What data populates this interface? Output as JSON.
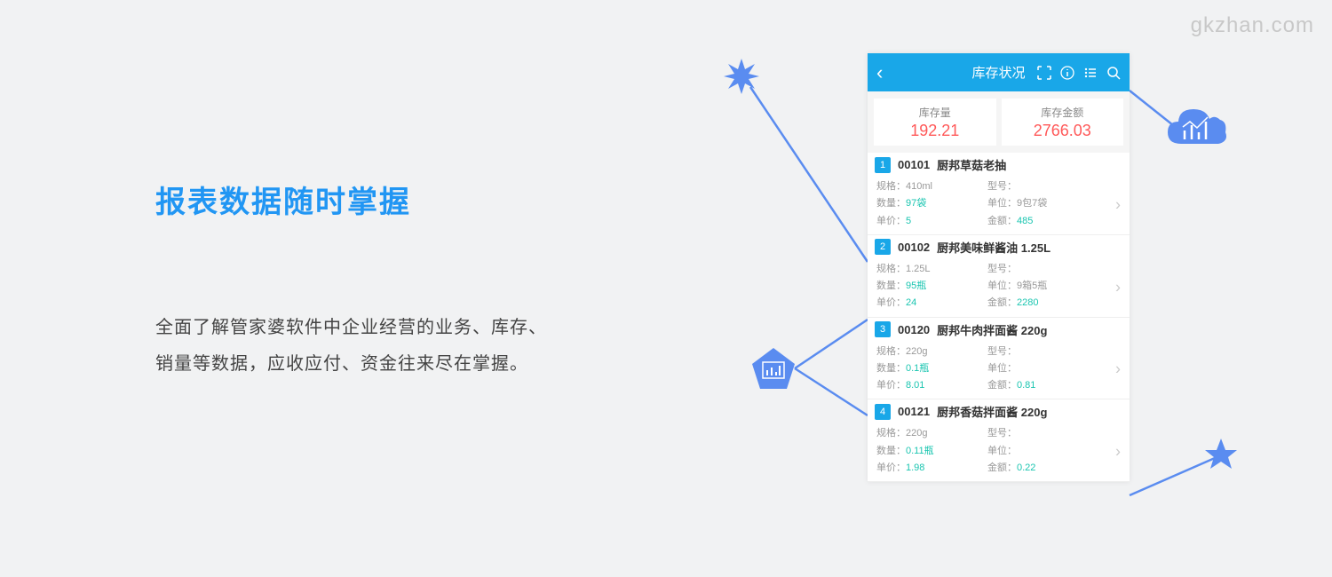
{
  "watermark": "gkzhan.com",
  "headline": "报表数据随时掌握",
  "body": "全面了解管家婆软件中企业经营的业务、库存、销量等数据，应收应付、资金往来尽在掌握。",
  "phone": {
    "title": "库存状况",
    "summary": {
      "qty_label": "库存量",
      "qty_value": "192.21",
      "amt_label": "库存金额",
      "amt_value": "2766.03"
    },
    "labels": {
      "spec": "规格：",
      "model": "型号：",
      "qty": "数量：",
      "unit": "单位：",
      "price": "单价：",
      "amount": "金额："
    },
    "items": [
      {
        "idx": "1",
        "code": "00101",
        "name": "厨邦草菇老抽",
        "spec": "410ml",
        "model": "",
        "qty": "97袋",
        "unit": "9包7袋",
        "price": "5",
        "amount": "485"
      },
      {
        "idx": "2",
        "code": "00102",
        "name": "厨邦美味鲜酱油 1.25L",
        "spec": "1.25L",
        "model": "",
        "qty": "95瓶",
        "unit": "9箱5瓶",
        "price": "24",
        "amount": "2280"
      },
      {
        "idx": "3",
        "code": "00120",
        "name": "厨邦牛肉拌面酱 220g",
        "spec": "220g",
        "model": "",
        "qty": "0.1瓶",
        "unit": "",
        "price": "8.01",
        "amount": "0.81"
      },
      {
        "idx": "4",
        "code": "00121",
        "name": "厨邦香菇拌面酱 220g",
        "spec": "220g",
        "model": "",
        "qty": "0.11瓶",
        "unit": "",
        "price": "1.98",
        "amount": "0.22"
      }
    ]
  },
  "colors": {
    "accent": "#19a7e8",
    "deco_blue": "#5a8cf0",
    "headline_blue": "#2196f3",
    "value_red": "#ff5959",
    "value_teal": "#1ac5b0",
    "bg": "#f1f2f3"
  }
}
